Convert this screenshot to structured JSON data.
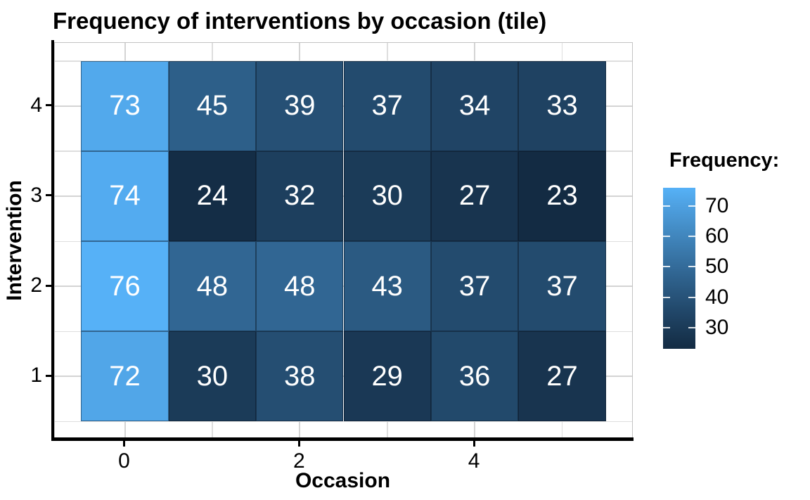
{
  "title": "Frequency of interventions by occasion (tile)",
  "chart_data": {
    "type": "heatmap",
    "title": "Frequency of interventions by occasion (tile)",
    "xlabel": "Occasion",
    "ylabel": "Intervention",
    "x": [
      0,
      1,
      2,
      3,
      4,
      5
    ],
    "rows": [
      {
        "intervention": 4,
        "values": [
          73,
          45,
          39,
          37,
          34,
          33
        ]
      },
      {
        "intervention": 3,
        "values": [
          74,
          24,
          32,
          30,
          27,
          23
        ]
      },
      {
        "intervention": 2,
        "values": [
          76,
          48,
          48,
          43,
          37,
          37
        ]
      },
      {
        "intervention": 1,
        "values": [
          72,
          30,
          38,
          29,
          36,
          27
        ]
      }
    ],
    "x_domain": [
      -0.8,
      5.8
    ],
    "y_domain": [
      0.3,
      4.7
    ],
    "x_major_breaks": [
      0,
      2,
      4
    ],
    "x_minor_breaks": [
      1,
      3,
      5
    ],
    "y_major_breaks": [
      1,
      2,
      3,
      4
    ],
    "y_minor_breaks": [
      0.5,
      1.5,
      2.5,
      3.5,
      4.5
    ],
    "legend": {
      "title": "Frequency:",
      "ticks": [
        70,
        60,
        50,
        40,
        30
      ],
      "min": 23,
      "max": 76,
      "position": "right"
    },
    "grid": true,
    "colors": {
      "low": "#132B43",
      "high": "#56B1F7",
      "tile_text": "#FFFFFF",
      "grid_major": "#D4D4D4",
      "grid_minor": "#DEDEDE",
      "panel_border": "#C3C3C3",
      "axis_line": "#000000",
      "text": "#000000"
    }
  }
}
